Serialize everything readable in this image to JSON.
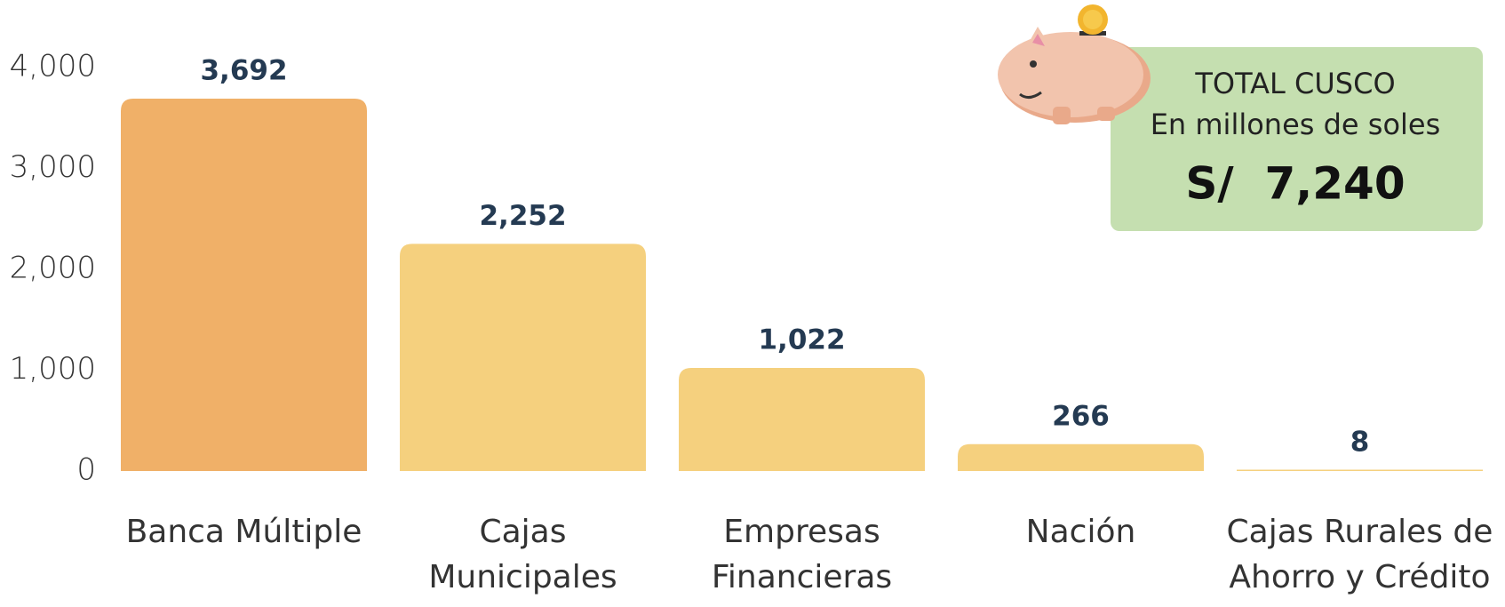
{
  "chart_data": {
    "type": "bar",
    "categories": [
      [
        "Banca Múltiple"
      ],
      [
        "Cajas",
        "Municipales"
      ],
      [
        "Empresas",
        "Financieras"
      ],
      [
        "Nación"
      ],
      [
        "Cajas Rurales de",
        "Ahorro y Crédito"
      ]
    ],
    "values": [
      3692,
      2252,
      1022,
      266,
      8
    ],
    "value_labels": [
      "3,692",
      "2,252",
      "1,022",
      "266",
      "8"
    ],
    "colors": [
      "#f0b068",
      "#f5d07e",
      "#f5d07e",
      "#f5d07e",
      "#f5d07e"
    ],
    "ylim": [
      0,
      4000
    ],
    "yticks": [
      0,
      {
        "value": 1000,
        "label": "1,000"
      },
      {
        "value": 2000,
        "label": "2,000"
      },
      {
        "value": 3000,
        "label": "3,000"
      },
      {
        "value": 4000,
        "label": "4,000"
      }
    ],
    "annotation": {
      "title": "TOTAL CUSCO",
      "subtitle": "En millones de soles",
      "total": "S/  7,240"
    }
  }
}
